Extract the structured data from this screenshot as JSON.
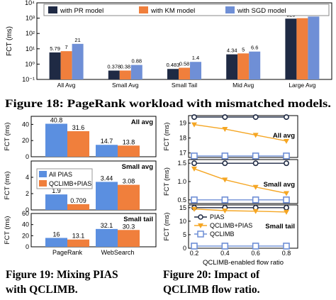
{
  "colors": {
    "pr": "#1f2a44",
    "km": "#f07f3c",
    "sgd": "#6f8fd6",
    "pias": "#1f2a44",
    "qclimb_pias": "#f5a623",
    "qclimb": "#6f8fd6",
    "bar_all_pias": "#5b8fe0",
    "bar_qclimb_pias": "#f07f3c"
  },
  "captions": {
    "fig18": "Figure 18: PageRank workload with mismatched models.",
    "fig19_line1": "Figure 19:  Mixing PIAS",
    "fig19_line2": "with QCLIMB.",
    "fig20_line1": "Figure 20:    Impact of",
    "fig20_line2": "QCLIMB flow ratio."
  },
  "chart_data": [
    {
      "id": "fig18",
      "type": "bar",
      "ylabel": "FCT (ms)",
      "yscale": "log",
      "ylim": [
        0.1,
        10000
      ],
      "yticks": [
        "10⁻¹",
        "10⁰",
        "10¹",
        "10²",
        "10³",
        "10⁴"
      ],
      "categories": [
        "All Avg",
        "Small Avg",
        "Small Tail",
        "Mid Avg",
        "Large Avg"
      ],
      "series": [
        {
          "name": "with PR model",
          "values": [
            5.79,
            0.378,
            0.483,
            4.34,
            929
          ],
          "labels": [
            "5.79",
            "0.378",
            "0.483",
            "4.34",
            "929"
          ]
        },
        {
          "name": "with KM model",
          "values": [
            7,
            0.38,
            0.58,
            5,
            1001
          ],
          "labels": [
            "7",
            "0.38",
            "0.58",
            "5",
            "1001"
          ]
        },
        {
          "name": "with SGD model",
          "values": [
            21,
            0.88,
            1.4,
            6.6,
            1273
          ],
          "labels": [
            "21",
            "0.88",
            "1.4",
            "6.6",
            "1273"
          ]
        }
      ]
    },
    {
      "id": "fig19",
      "type": "bar",
      "ylabel": "FCT (ms)",
      "categories": [
        "PageRank",
        "WebSearch"
      ],
      "legend": [
        "All PIAS",
        "QCLIMB+PIAS"
      ],
      "panels": [
        {
          "title": "All avg",
          "ylim": [
            0,
            50
          ],
          "yticks": [
            "0",
            "20",
            "40"
          ],
          "values": [
            [
              40.8,
              31.6
            ],
            [
              14.7,
              13.8
            ]
          ],
          "labels": [
            [
              "40.8",
              "31.6"
            ],
            [
              "14.7",
              "13.8"
            ]
          ]
        },
        {
          "title": "Small avg",
          "ylim": [
            0,
            6
          ],
          "yticks": [
            "0",
            "2",
            "4"
          ],
          "values": [
            [
              1.9,
              0.709
            ],
            [
              3.44,
              3.08
            ]
          ],
          "labels": [
            [
              "1.9",
              "0.709"
            ],
            [
              "3.44",
              "3.08"
            ]
          ]
        },
        {
          "title": "Small tail",
          "ylim": [
            0,
            60
          ],
          "yticks": [
            "0",
            "20",
            "40",
            "60"
          ],
          "values": [
            [
              16,
              13.1
            ],
            [
              32.1,
              30.3
            ]
          ],
          "labels": [
            [
              "16",
              "13.1"
            ],
            [
              "32.1",
              "30.3"
            ]
          ]
        }
      ]
    },
    {
      "id": "fig20",
      "type": "line",
      "xlabel": "QCLIMB-enabled flow ratio",
      "ylabel": "FCT (ms)",
      "x": [
        0.2,
        0.4,
        0.6,
        0.8
      ],
      "xticks": [
        "0.2",
        "0.4",
        "0.6",
        "0.8"
      ],
      "legend": [
        "PIAS",
        "QCLIMB+PIAS",
        "QCLIMB"
      ],
      "panels": [
        {
          "title": "All avg",
          "ylim": [
            16.7,
            19.5
          ],
          "yticks": [
            "17",
            "18",
            "19"
          ],
          "series": [
            {
              "name": "PIAS",
              "values": [
                19.4,
                19.4,
                19.4,
                19.4
              ]
            },
            {
              "name": "QCLIMB+PIAS",
              "values": [
                18.9,
                18.6,
                18.2,
                17.8
              ]
            },
            {
              "name": "QCLIMB",
              "values": [
                16.8,
                16.8,
                16.8,
                16.8
              ]
            }
          ]
        },
        {
          "title": "Small avg",
          "ylim": [
            0.4,
            1.6
          ],
          "yticks": [
            "0.5",
            "1.0",
            "1.5"
          ],
          "series": [
            {
              "name": "PIAS",
              "values": [
                1.5,
                1.5,
                1.5,
                1.5
              ]
            },
            {
              "name": "QCLIMB+PIAS",
              "values": [
                1.35,
                1.05,
                0.85,
                0.68
              ]
            },
            {
              "name": "QCLIMB",
              "values": [
                0.5,
                0.5,
                0.5,
                0.5
              ]
            }
          ]
        },
        {
          "title": "Small tail",
          "ylim": [
            0,
            16
          ],
          "yticks": [
            "0",
            "5",
            "10",
            "15"
          ],
          "series": [
            {
              "name": "PIAS",
              "values": [
                15,
                15,
                15,
                15
              ]
            },
            {
              "name": "QCLIMB+PIAS",
              "values": [
                14.5,
                13.9,
                13.7,
                13.4
              ]
            },
            {
              "name": "QCLIMB",
              "values": [
                0.8,
                0.8,
                0.8,
                0.8
              ]
            }
          ]
        }
      ]
    }
  ]
}
